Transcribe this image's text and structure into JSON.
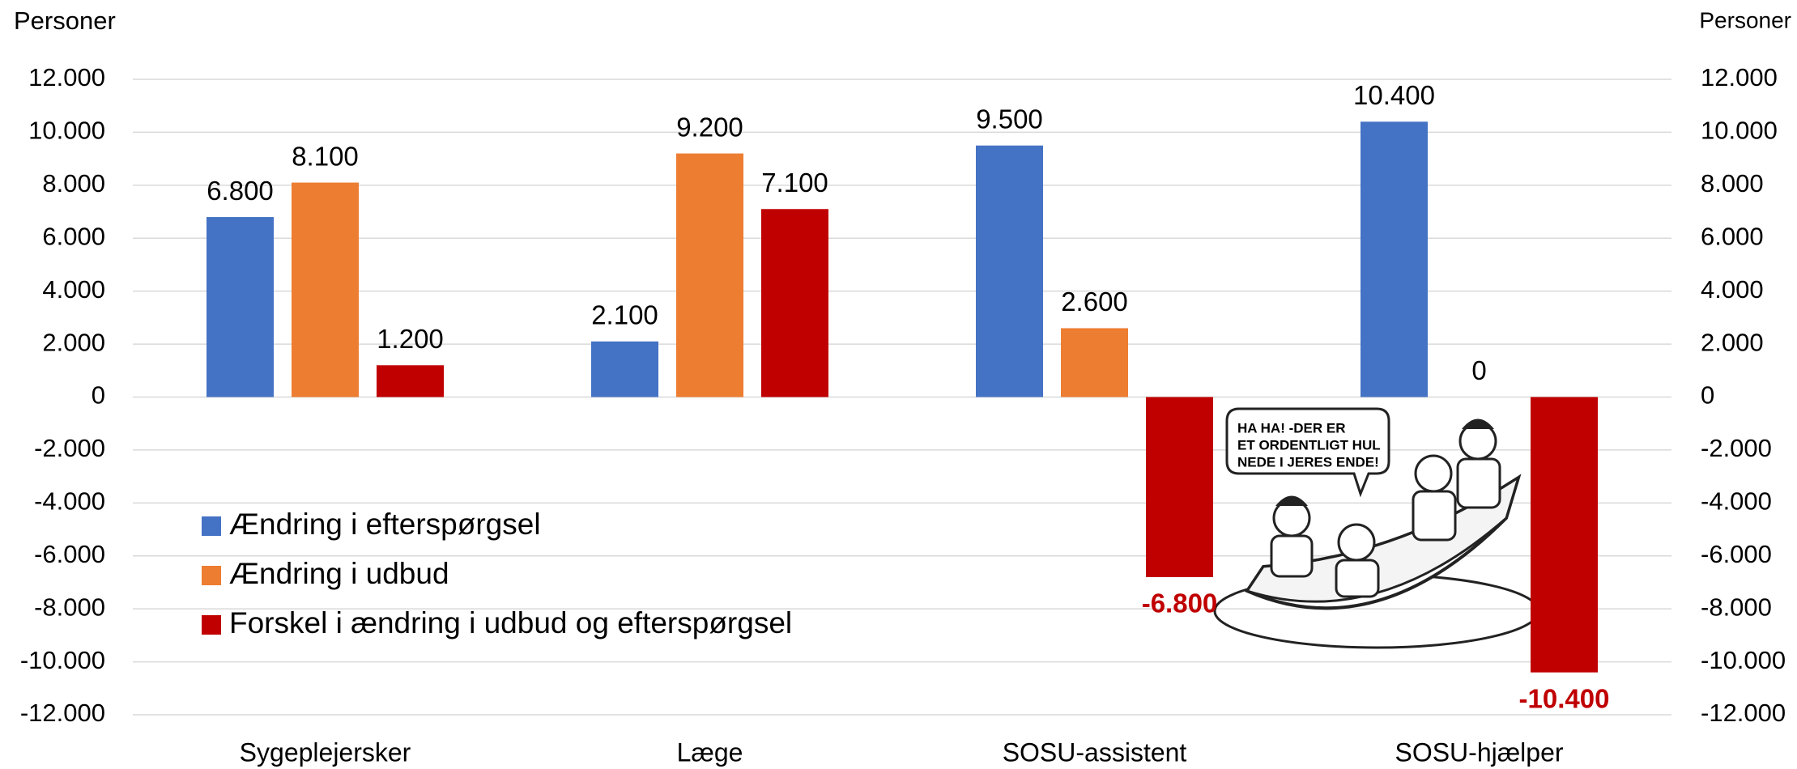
{
  "chart_data": {
    "type": "bar",
    "y_axis_label": "Personer",
    "y2_axis_label": "Personer",
    "categories": [
      "Sygeplejersker",
      "Læge",
      "SOSU-assistent",
      "SOSU-hjælper"
    ],
    "series": [
      {
        "name": "Ændring i efterspørgsel",
        "color": "#4472c4",
        "values": [
          6800,
          2100,
          9500,
          10400
        ],
        "value_labels": [
          "6.800",
          "2.100",
          "9.500",
          "10.400"
        ]
      },
      {
        "name": "Ændring i udbud",
        "color": "#ed7d31",
        "values": [
          8100,
          9200,
          2600,
          0
        ],
        "value_labels": [
          "8.100",
          "9.200",
          "2.600",
          "0"
        ]
      },
      {
        "name": "Forskel i ændring i udbud og efterspørgsel",
        "color": "#c00000",
        "values": [
          1200,
          7100,
          -6800,
          -10400
        ],
        "value_labels": [
          "1.200",
          "7.100",
          "-6.800",
          "-10.400"
        ]
      }
    ],
    "ylim": [
      -12000,
      12000
    ],
    "yticks": [
      {
        "value": 12000,
        "label": "12.000"
      },
      {
        "value": 10000,
        "label": "10.000"
      },
      {
        "value": 8000,
        "label": "8.000"
      },
      {
        "value": 6000,
        "label": "6.000"
      },
      {
        "value": 4000,
        "label": "4.000"
      },
      {
        "value": 2000,
        "label": "2.000"
      },
      0,
      {
        "value": -2000,
        "label": "-2.000"
      },
      {
        "value": -4000,
        "label": "-4.000"
      },
      {
        "value": -6000,
        "label": "-6.000"
      },
      {
        "value": -8000,
        "label": "-8.000"
      },
      {
        "value": -10000,
        "label": "-10.000"
      },
      {
        "value": -12000,
        "label": "-12.000"
      }
    ],
    "y2lim": [
      -12000,
      12000
    ],
    "y2ticks": [
      {
        "value": 12000,
        "label": "12.000"
      },
      {
        "value": 10000,
        "label": "10.000"
      },
      {
        "value": 8000,
        "label": "8.000"
      },
      {
        "value": 6000,
        "label": "6.000"
      },
      {
        "value": 4000,
        "label": "4.000"
      },
      {
        "value": 2000,
        "label": "2.000"
      },
      0,
      {
        "value": -2000,
        "label": "-2.000"
      },
      {
        "value": -4000,
        "label": "-4.000"
      },
      {
        "value": -6000,
        "label": "-6.000"
      },
      {
        "value": -8000,
        "label": "-8.000"
      },
      {
        "value": -10000,
        "label": "-10.000"
      },
      {
        "value": -12000,
        "label": "-12.000"
      }
    ],
    "grid": true,
    "legend": "lower-left",
    "annotation_lines": [
      "HA HA! -DER ER",
      "ET ORDENTLIGT HUL",
      "NEDE I JERES ENDE!"
    ]
  }
}
